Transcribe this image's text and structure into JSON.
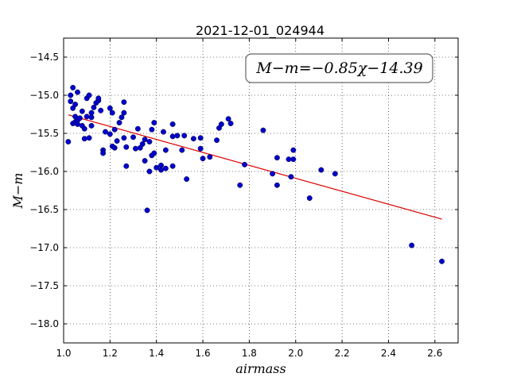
{
  "chart_data": {
    "type": "scatter",
    "title": "2021-12-01_024944",
    "xlabel": "airmass",
    "ylabel": "M−m",
    "xlim": [
      1.0,
      2.7
    ],
    "ylim": [
      -18.25,
      -14.25
    ],
    "y_inverted": true,
    "grid": true,
    "x_ticks": [
      "1.0",
      "1.2",
      "1.4",
      "1.6",
      "1.8",
      "2.0",
      "2.2",
      "2.4",
      "2.6"
    ],
    "y_ticks": [
      "−14.5",
      "−15.0",
      "−15.5",
      "−16.0",
      "−16.5",
      "−17.0",
      "−17.5",
      "−18.0"
    ],
    "annotation": "M−m=−0.85χ−14.39",
    "fit": {
      "slope": -0.85,
      "intercept": -14.39,
      "x_range": [
        1.02,
        2.63
      ],
      "color": "#dd0000"
    },
    "point_color": "#0000cc",
    "points": [
      [
        1.02,
        -15.61
      ],
      [
        1.03,
        -15.08
      ],
      [
        1.03,
        -15.0
      ],
      [
        1.04,
        -14.9
      ],
      [
        1.04,
        -15.17
      ],
      [
        1.04,
        -15.37
      ],
      [
        1.05,
        -15.12
      ],
      [
        1.05,
        -15.28
      ],
      [
        1.05,
        -15.35
      ],
      [
        1.06,
        -14.96
      ],
      [
        1.06,
        -15.38
      ],
      [
        1.06,
        -15.33
      ],
      [
        1.07,
        -15.3
      ],
      [
        1.08,
        -15.21
      ],
      [
        1.08,
        -15.4
      ],
      [
        1.09,
        -15.57
      ],
      [
        1.09,
        -15.44
      ],
      [
        1.1,
        -15.04
      ],
      [
        1.1,
        -15.28
      ],
      [
        1.11,
        -15.0
      ],
      [
        1.11,
        -15.56
      ],
      [
        1.12,
        -15.4
      ],
      [
        1.12,
        -15.23
      ],
      [
        1.12,
        -15.29
      ],
      [
        1.13,
        -15.16
      ],
      [
        1.14,
        -15.1
      ],
      [
        1.15,
        -15.07
      ],
      [
        1.15,
        -15.04
      ],
      [
        1.16,
        -15.2
      ],
      [
        1.17,
        -15.72
      ],
      [
        1.17,
        -15.76
      ],
      [
        1.18,
        -15.48
      ],
      [
        1.2,
        -15.17
      ],
      [
        1.2,
        -15.51
      ],
      [
        1.21,
        -15.23
      ],
      [
        1.21,
        -15.67
      ],
      [
        1.22,
        -15.45
      ],
      [
        1.22,
        -15.69
      ],
      [
        1.23,
        -15.6
      ],
      [
        1.24,
        -15.36
      ],
      [
        1.25,
        -15.29
      ],
      [
        1.26,
        -15.23
      ],
      [
        1.26,
        -15.09
      ],
      [
        1.26,
        -15.56
      ],
      [
        1.27,
        -15.68
      ],
      [
        1.27,
        -15.93
      ],
      [
        1.3,
        -15.55
      ],
      [
        1.31,
        -15.7
      ],
      [
        1.32,
        -15.44
      ],
      [
        1.33,
        -15.69
      ],
      [
        1.34,
        -15.64
      ],
      [
        1.35,
        -15.58
      ],
      [
        1.35,
        -15.86
      ],
      [
        1.36,
        -16.51
      ],
      [
        1.37,
        -15.61
      ],
      [
        1.37,
        -16.0
      ],
      [
        1.38,
        -15.45
      ],
      [
        1.38,
        -15.79
      ],
      [
        1.39,
        -15.36
      ],
      [
        1.39,
        -15.76
      ],
      [
        1.4,
        -15.95
      ],
      [
        1.42,
        -15.92
      ],
      [
        1.42,
        -15.98
      ],
      [
        1.43,
        -15.48
      ],
      [
        1.44,
        -15.72
      ],
      [
        1.44,
        -15.96
      ],
      [
        1.47,
        -15.54
      ],
      [
        1.47,
        -15.93
      ],
      [
        1.47,
        -15.38
      ],
      [
        1.49,
        -15.53
      ],
      [
        1.51,
        -15.72
      ],
      [
        1.52,
        -15.53
      ],
      [
        1.53,
        -16.1
      ],
      [
        1.56,
        -15.57
      ],
      [
        1.59,
        -15.56
      ],
      [
        1.59,
        -15.7
      ],
      [
        1.6,
        -15.83
      ],
      [
        1.63,
        -15.81
      ],
      [
        1.66,
        -15.59
      ],
      [
        1.67,
        -15.43
      ],
      [
        1.68,
        -15.38
      ],
      [
        1.71,
        -15.31
      ],
      [
        1.72,
        -15.37
      ],
      [
        1.76,
        -16.18
      ],
      [
        1.78,
        -15.91
      ],
      [
        1.86,
        -15.46
      ],
      [
        1.9,
        -16.03
      ],
      [
        1.92,
        -15.82
      ],
      [
        1.92,
        -16.18
      ],
      [
        1.97,
        -15.84
      ],
      [
        1.98,
        -16.07
      ],
      [
        1.99,
        -15.72
      ],
      [
        1.99,
        -15.84
      ],
      [
        2.06,
        -16.35
      ],
      [
        2.11,
        -15.98
      ],
      [
        2.17,
        -16.03
      ],
      [
        2.5,
        -16.97
      ],
      [
        2.63,
        -17.18
      ]
    ]
  }
}
